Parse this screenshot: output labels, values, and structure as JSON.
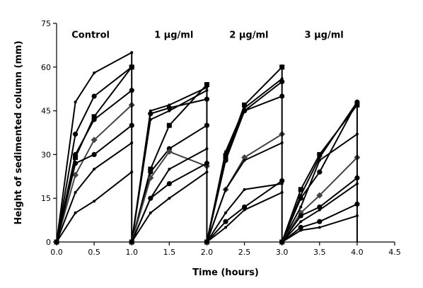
{
  "chart_data": {
    "type": "line",
    "title": "",
    "xlabel": "Time (hours)",
    "ylabel": "Height of sedimented column (mm)",
    "xlim": [
      0,
      4.5
    ],
    "ylim": [
      0,
      75
    ],
    "x_ticks": [
      "0.0",
      "0.5",
      "1.0",
      "1.5",
      "2.0",
      "2.5",
      "3.0",
      "3.5",
      "4.0",
      "4.5"
    ],
    "y_ticks": [
      "0",
      "15",
      "30",
      "45",
      "60",
      "75"
    ],
    "grid": false,
    "legend": "none",
    "group_labels": [
      {
        "text": "Control",
        "x": 0.2,
        "y": 70
      },
      {
        "text": "1 μg/ml",
        "x": 1.3,
        "y": 70
      },
      {
        "text": "2 μg/ml",
        "x": 2.3,
        "y": 70
      },
      {
        "text": "3 μg/ml",
        "x": 3.3,
        "y": 70
      }
    ],
    "series": [
      {
        "color": "#000000",
        "marker": "dot",
        "points": [
          [
            0,
            0
          ],
          [
            0.25,
            48
          ],
          [
            0.5,
            58
          ],
          [
            1,
            65
          ]
        ]
      },
      {
        "color": "#000000",
        "marker": "circle",
        "points": [
          [
            0,
            0
          ],
          [
            0.25,
            37
          ],
          [
            0.5,
            50
          ],
          [
            1,
            60
          ]
        ]
      },
      {
        "color": "#000000",
        "marker": "square",
        "points": [
          [
            0,
            0
          ],
          [
            0.25,
            29
          ],
          [
            0.5,
            43
          ],
          [
            1,
            60
          ]
        ]
      },
      {
        "color": "#000000",
        "marker": "circle",
        "points": [
          [
            0,
            0
          ],
          [
            0.25,
            30
          ],
          [
            0.5,
            42
          ],
          [
            1,
            52
          ]
        ]
      },
      {
        "color": "#444444",
        "marker": "diamond",
        "points": [
          [
            0,
            0
          ],
          [
            0.25,
            23
          ],
          [
            0.5,
            35
          ],
          [
            1,
            47
          ]
        ]
      },
      {
        "color": "#000000",
        "marker": "circle",
        "points": [
          [
            0,
            0
          ],
          [
            0.25,
            27
          ],
          [
            0.5,
            30
          ],
          [
            1,
            40
          ]
        ]
      },
      {
        "color": "#000000",
        "marker": "dot",
        "points": [
          [
            0,
            0
          ],
          [
            0.25,
            17
          ],
          [
            0.5,
            25
          ],
          [
            1,
            34
          ]
        ]
      },
      {
        "color": "#000000",
        "marker": "dot",
        "points": [
          [
            0,
            0
          ],
          [
            0.25,
            10
          ],
          [
            0.5,
            14
          ],
          [
            1,
            24
          ]
        ]
      },
      {
        "color": "#000000",
        "marker": "dot",
        "points": [
          [
            1,
            0
          ],
          [
            1.25,
            45
          ],
          [
            1.5,
            47
          ],
          [
            2,
            53
          ]
        ]
      },
      {
        "color": "#000000",
        "marker": "circle",
        "points": [
          [
            1,
            0
          ],
          [
            1.25,
            44
          ],
          [
            1.5,
            46
          ],
          [
            2,
            49
          ]
        ]
      },
      {
        "color": "#000000",
        "marker": "dot",
        "points": [
          [
            1,
            0
          ],
          [
            1.25,
            42
          ],
          [
            1.5,
            45
          ],
          [
            2,
            52
          ]
        ]
      },
      {
        "color": "#000000",
        "marker": "square",
        "points": [
          [
            1,
            0
          ],
          [
            1.25,
            25
          ],
          [
            1.5,
            40
          ],
          [
            2,
            54
          ]
        ]
      },
      {
        "color": "#000000",
        "marker": "circle",
        "points": [
          [
            1,
            0
          ],
          [
            1.25,
            24
          ],
          [
            1.5,
            32
          ],
          [
            2,
            40
          ]
        ]
      },
      {
        "color": "#444444",
        "marker": "diamond",
        "points": [
          [
            1,
            0
          ],
          [
            1.25,
            22
          ],
          [
            1.5,
            31
          ],
          [
            2,
            26
          ]
        ]
      },
      {
        "color": "#000000",
        "marker": "dot",
        "points": [
          [
            1,
            0
          ],
          [
            1.25,
            15
          ],
          [
            1.5,
            25
          ],
          [
            2,
            32
          ]
        ]
      },
      {
        "color": "#000000",
        "marker": "circle",
        "points": [
          [
            1,
            0
          ],
          [
            1.25,
            15
          ],
          [
            1.5,
            20
          ],
          [
            2,
            27
          ]
        ]
      },
      {
        "color": "#000000",
        "marker": "dot",
        "points": [
          [
            1,
            0
          ],
          [
            1.25,
            10
          ],
          [
            1.5,
            15
          ],
          [
            2,
            24
          ]
        ]
      },
      {
        "color": "#000000",
        "marker": "square",
        "points": [
          [
            2,
            0
          ],
          [
            2.25,
            29
          ],
          [
            2.5,
            47
          ],
          [
            3,
            60
          ]
        ]
      },
      {
        "color": "#000000",
        "marker": "dot",
        "points": [
          [
            2,
            0
          ],
          [
            2.25,
            31
          ],
          [
            2.5,
            46
          ],
          [
            3,
            56
          ]
        ]
      },
      {
        "color": "#000000",
        "marker": "circle",
        "points": [
          [
            2,
            0
          ],
          [
            2.25,
            30
          ],
          [
            2.5,
            45
          ],
          [
            3,
            55
          ]
        ]
      },
      {
        "color": "#000000",
        "marker": "circle",
        "points": [
          [
            2,
            0
          ],
          [
            2.25,
            28
          ],
          [
            2.5,
            45
          ],
          [
            3,
            50
          ]
        ]
      },
      {
        "color": "#444444",
        "marker": "diamond",
        "points": [
          [
            2,
            0
          ],
          [
            2.25,
            18
          ],
          [
            2.5,
            29
          ],
          [
            3,
            37
          ]
        ]
      },
      {
        "color": "#000000",
        "marker": "dot",
        "points": [
          [
            2,
            0
          ],
          [
            2.25,
            18
          ],
          [
            2.5,
            28
          ],
          [
            3,
            34
          ]
        ]
      },
      {
        "color": "#000000",
        "marker": "dot",
        "points": [
          [
            2,
            0
          ],
          [
            2.25,
            10
          ],
          [
            2.5,
            18
          ],
          [
            3,
            20
          ]
        ]
      },
      {
        "color": "#000000",
        "marker": "circle",
        "points": [
          [
            2,
            0
          ],
          [
            2.25,
            7
          ],
          [
            2.5,
            12
          ],
          [
            3,
            21
          ]
        ]
      },
      {
        "color": "#000000",
        "marker": "dot",
        "points": [
          [
            2,
            0
          ],
          [
            2.25,
            5
          ],
          [
            2.5,
            11
          ],
          [
            3,
            17
          ]
        ]
      },
      {
        "color": "#000000",
        "marker": "square",
        "points": [
          [
            3,
            0
          ],
          [
            3.25,
            18
          ],
          [
            3.5,
            30
          ],
          [
            4,
            47
          ]
        ]
      },
      {
        "color": "#000000",
        "marker": "dot",
        "points": [
          [
            3,
            0
          ],
          [
            3.25,
            16
          ],
          [
            3.5,
            29
          ],
          [
            4,
            48
          ]
        ]
      },
      {
        "color": "#000000",
        "marker": "circle",
        "points": [
          [
            3,
            0
          ],
          [
            3.25,
            15
          ],
          [
            3.5,
            24
          ],
          [
            4,
            48
          ]
        ]
      },
      {
        "color": "#000000",
        "marker": "dot",
        "points": [
          [
            3,
            0
          ],
          [
            3.25,
            12
          ],
          [
            3.5,
            28
          ],
          [
            4,
            37
          ]
        ]
      },
      {
        "color": "#444444",
        "marker": "diamond",
        "points": [
          [
            3,
            0
          ],
          [
            3.25,
            10
          ],
          [
            3.5,
            16
          ],
          [
            4,
            29
          ]
        ]
      },
      {
        "color": "#000000",
        "marker": "circle",
        "points": [
          [
            3,
            0
          ],
          [
            3.25,
            9
          ],
          [
            3.5,
            12
          ],
          [
            4,
            22
          ]
        ]
      },
      {
        "color": "#000000",
        "marker": "dot",
        "points": [
          [
            3,
            0
          ],
          [
            3.25,
            7
          ],
          [
            3.5,
            11
          ],
          [
            4,
            20
          ]
        ]
      },
      {
        "color": "#000000",
        "marker": "circle",
        "points": [
          [
            3,
            0
          ],
          [
            3.25,
            5
          ],
          [
            3.5,
            7
          ],
          [
            4,
            13
          ]
        ]
      },
      {
        "color": "#000000",
        "marker": "dot",
        "points": [
          [
            3,
            0
          ],
          [
            3.25,
            4
          ],
          [
            3.5,
            5
          ],
          [
            4,
            9
          ]
        ]
      }
    ]
  }
}
